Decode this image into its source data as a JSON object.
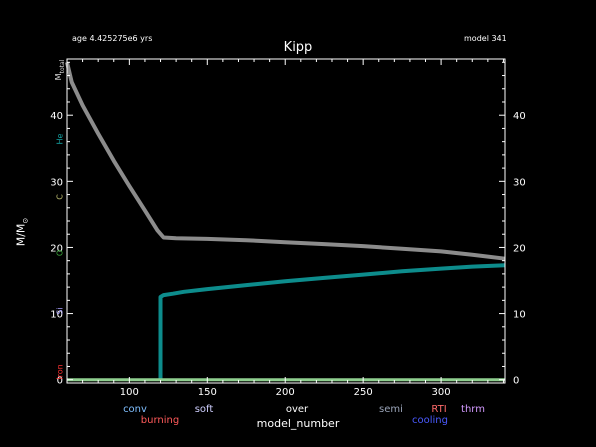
{
  "header": {
    "age_text": "age 4.425275e6 yrs",
    "model_text": "model 341"
  },
  "side_labels": {
    "m_total": "M",
    "m_total_sub": "total",
    "he": "He",
    "c": "C",
    "o": "O",
    "si": "Si",
    "iron": "Iron"
  },
  "legend": [
    {
      "label": "conv",
      "color": "#7fbfff"
    },
    {
      "label": "burning",
      "color": "#ff5a5a"
    },
    {
      "label": "soft",
      "color": "#cfcfff"
    },
    {
      "label": "over",
      "color": "#ffffff"
    },
    {
      "label": "semi",
      "color": "#9aa4b8"
    },
    {
      "label": "RTI",
      "color": "#ff6a6a"
    },
    {
      "label": "cooling",
      "color": "#4a5aff"
    },
    {
      "label": "thrm",
      "color": "#d39aff"
    }
  ],
  "colors": {
    "total_mass": "#8c8c8c",
    "he_core": "#0d8c8c",
    "baseline": "#8fcf8f",
    "he_label": "#14a0a0",
    "c_label": "#c8c878",
    "o_label": "#3caa3c",
    "si_label": "#a8a0ff",
    "iron_label": "#ff3232"
  },
  "chart_data": {
    "type": "line",
    "title": "Kipp",
    "xlabel": "model_number",
    "ylabel": "M/M",
    "ylabel_symbol": "⊙",
    "xlim": [
      60,
      341
    ],
    "ylim": [
      -0.5,
      48.5
    ],
    "xticks": [
      100,
      150,
      200,
      250,
      300
    ],
    "yticks": [
      0,
      10,
      20,
      30,
      40
    ],
    "xtick_labels": [
      "100",
      "150",
      "200",
      "250",
      "300"
    ],
    "ytick_labels_left": [
      "0",
      "10",
      "20",
      "30",
      "40"
    ],
    "ytick_labels_right": [
      "0",
      "10",
      "20",
      "30",
      "40"
    ],
    "series": [
      {
        "key": "total_mass",
        "x": [
          60,
          63,
          70,
          80,
          90,
          100,
          110,
          118,
          122,
          130,
          150,
          175,
          200,
          225,
          250,
          275,
          300,
          320,
          341
        ],
        "y": [
          48,
          45,
          41.5,
          37.2,
          33.1,
          29.3,
          25.6,
          22.6,
          21.5,
          21.4,
          21.3,
          21.1,
          20.8,
          20.5,
          20.2,
          19.8,
          19.4,
          18.9,
          18.3
        ]
      },
      {
        "key": "he_core",
        "x": [
          120,
          120,
          122,
          128,
          135,
          150,
          175,
          200,
          225,
          250,
          275,
          300,
          320,
          341
        ],
        "y": [
          0,
          12.5,
          12.8,
          13.0,
          13.3,
          13.7,
          14.3,
          14.9,
          15.4,
          15.9,
          16.4,
          16.8,
          17.1,
          17.3
        ]
      },
      {
        "key": "baseline",
        "x": [
          60,
          341
        ],
        "y": [
          0,
          0
        ]
      }
    ]
  }
}
